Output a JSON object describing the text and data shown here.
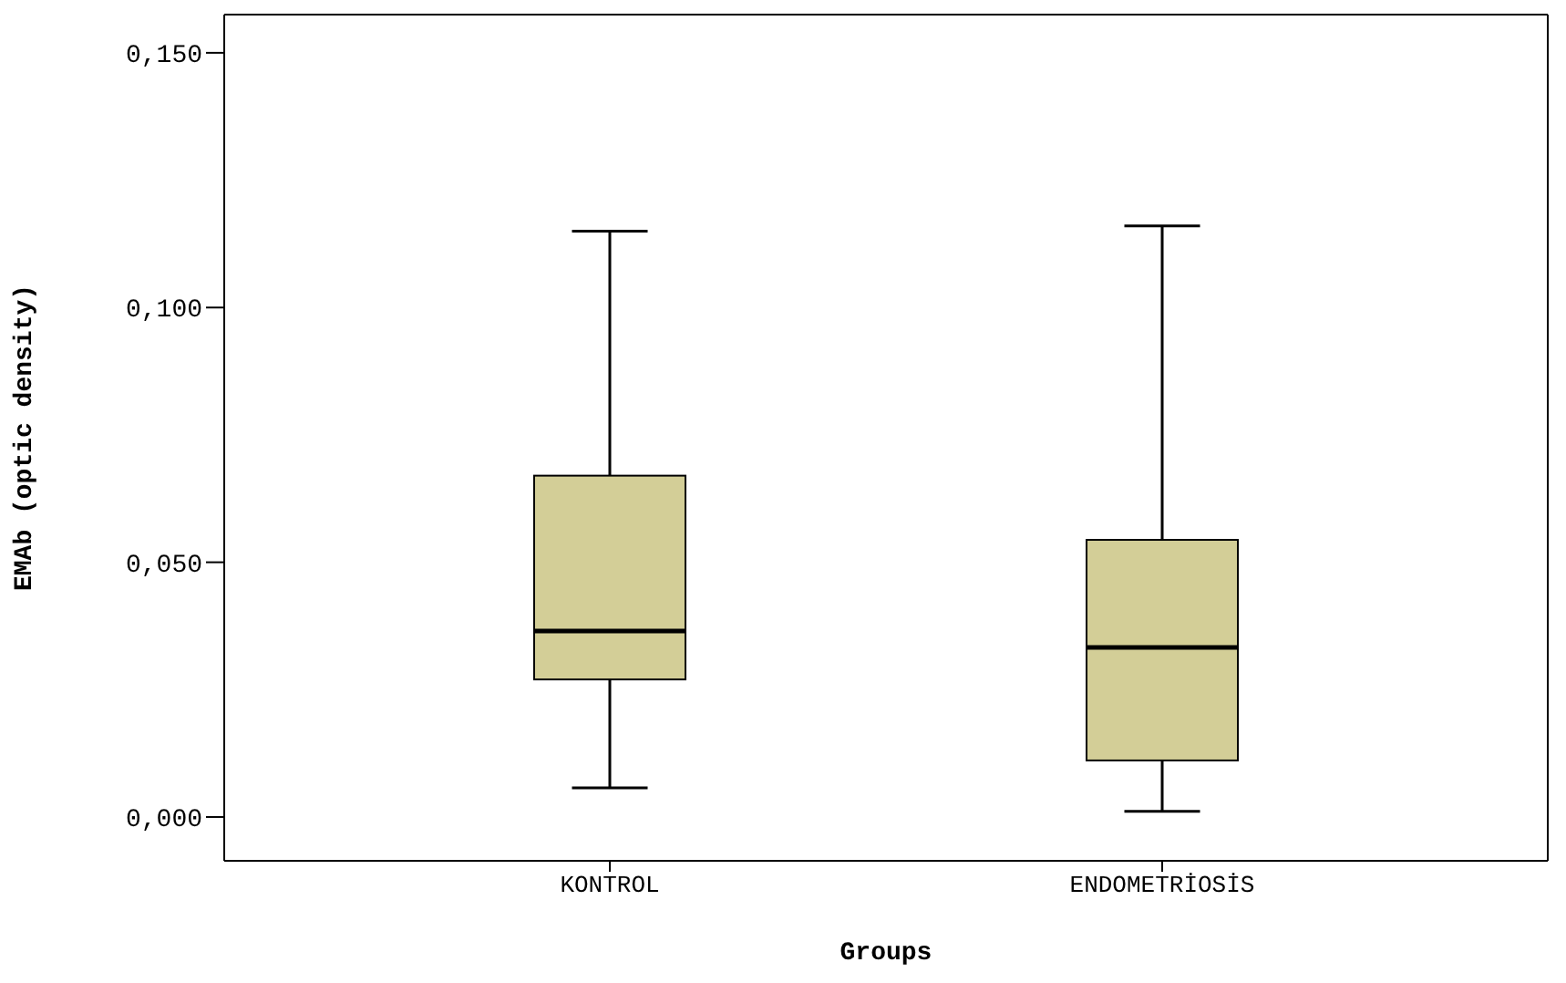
{
  "chart_data": {
    "type": "box",
    "xlabel": "Groups",
    "ylabel": "EMAb (optic density)",
    "categories": [
      "KONTROL",
      "ENDOMETRİOSİS"
    ],
    "boxes": [
      {
        "low": 0.0057,
        "q1": 0.027,
        "median": 0.0365,
        "q3": 0.067,
        "high": 0.115
      },
      {
        "low": 0.0011,
        "q1": 0.0111,
        "median": 0.0333,
        "q3": 0.0544,
        "high": 0.116
      }
    ],
    "color": "#d3ce97",
    "ylim": [
      -0.0086,
      0.1575
    ],
    "yticks": [
      {
        "value": 0,
        "label": "0,000"
      },
      {
        "value": 0.05,
        "label": "0,050"
      },
      {
        "value": 0.1,
        "label": "0,100"
      },
      {
        "value": 0.15,
        "label": "0,150"
      }
    ],
    "grid": false
  }
}
